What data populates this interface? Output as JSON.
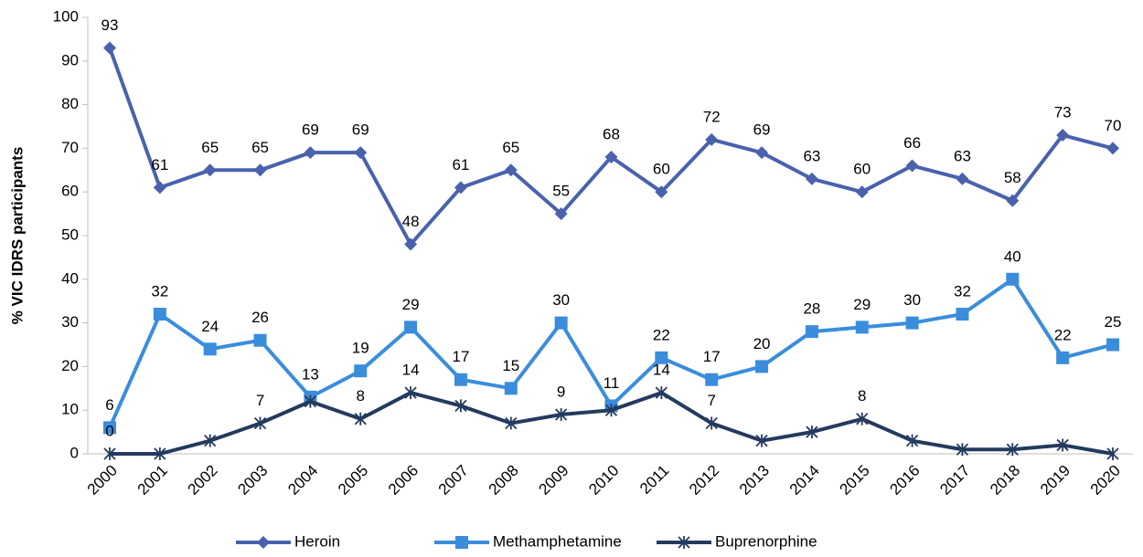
{
  "chart_data": {
    "type": "line",
    "y_label": "% VIC IDRS participants",
    "categories": [
      "2000",
      "2001",
      "2002",
      "2003",
      "2004",
      "2005",
      "2006",
      "2007",
      "2008",
      "2009",
      "2010",
      "2011",
      "2012",
      "2013",
      "2014",
      "2015",
      "2016",
      "2017",
      "2018",
      "2019",
      "2020"
    ],
    "series": [
      {
        "name": "Heroin",
        "color": "#4a62ad",
        "marker": "diamond",
        "values": [
          93,
          61,
          65,
          65,
          69,
          69,
          48,
          61,
          65,
          55,
          68,
          60,
          72,
          69,
          63,
          60,
          66,
          63,
          58,
          73,
          70
        ]
      },
      {
        "name": "Methamphetamine",
        "color": "#3a8ddc",
        "marker": "square",
        "values": [
          6,
          32,
          24,
          26,
          13,
          19,
          29,
          17,
          15,
          30,
          11,
          22,
          17,
          20,
          28,
          29,
          30,
          32,
          40,
          22,
          25
        ]
      },
      {
        "name": "Buprenorphine",
        "color": "#243a5e",
        "marker": "asterisk",
        "values": [
          0,
          0,
          3,
          7,
          12,
          8,
          14,
          11,
          7,
          9,
          10,
          14,
          7,
          3,
          5,
          8,
          3,
          1,
          1,
          2,
          0
        ],
        "value_labels": [
          "0",
          null,
          null,
          "7",
          null,
          "8",
          "14",
          null,
          null,
          "9",
          null,
          "14",
          "7",
          null,
          null,
          "8",
          null,
          null,
          null,
          null,
          null
        ]
      }
    ],
    "ylim": [
      0,
      100
    ],
    "yticks": [
      0,
      10,
      20,
      30,
      40,
      50,
      60,
      70,
      80,
      90,
      100
    ],
    "legend": "bottom",
    "grid": false
  }
}
